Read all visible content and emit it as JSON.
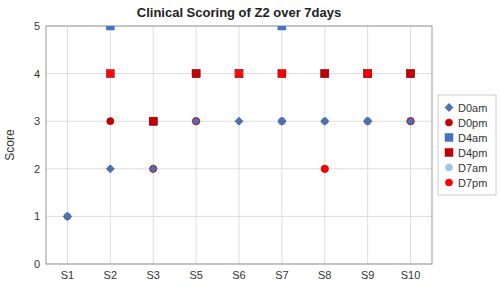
{
  "chart_data": {
    "type": "scatter",
    "title": "Clinical Scoring of Z2 over 7days",
    "y_label": "Score",
    "categories": [
      "S1",
      "S2",
      "S3",
      "S5",
      "S6",
      "S7",
      "S8",
      "S9",
      "S10"
    ],
    "series": [
      {
        "name": "D0am",
        "color": "#4472C4",
        "marker": "diamond",
        "values": [
          1,
          2,
          2,
          3,
          3,
          3,
          3,
          3,
          3
        ]
      },
      {
        "name": "D0pm",
        "color": "#C00000",
        "marker": "circle",
        "values": [
          1,
          3,
          3,
          3,
          4,
          3,
          2,
          3,
          3
        ]
      },
      {
        "name": "D4am",
        "color": "#4472C4",
        "marker": "square",
        "values": [
          null,
          5,
          3,
          4,
          4,
          5,
          4,
          4,
          4
        ]
      },
      {
        "name": "D4pm",
        "color": "#C00000",
        "marker": "square",
        "values": [
          null,
          4,
          3,
          4,
          4,
          4,
          4,
          4,
          4
        ]
      },
      {
        "name": "D7am",
        "color": "#9DC3E6",
        "marker": "circle",
        "values": [
          1,
          4,
          2,
          3,
          4,
          3,
          3,
          3,
          3
        ]
      },
      {
        "name": "D7pm",
        "color": "#FF0000",
        "marker": "circle",
        "values": [
          null,
          4,
          2,
          3,
          4,
          4,
          2,
          4,
          3
        ]
      }
    ],
    "ylim": [
      0,
      5
    ],
    "yticks": [
      0,
      1,
      2,
      3,
      4,
      5
    ],
    "grid": true,
    "legend": "right"
  }
}
